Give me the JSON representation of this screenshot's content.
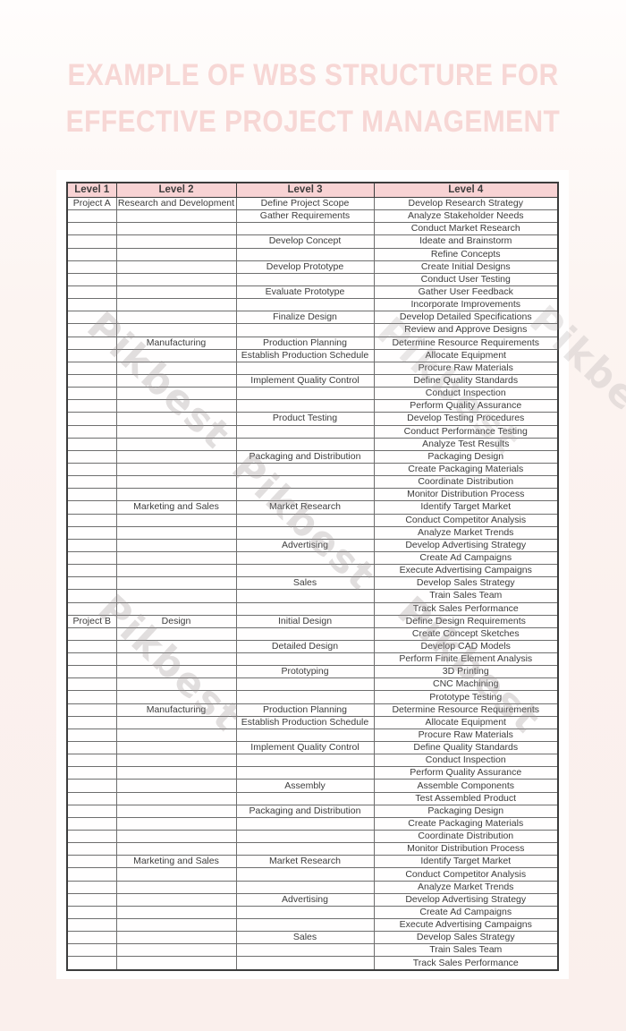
{
  "title": {
    "line1": "EXAMPLE OF WBS STRUCTURE FOR",
    "line2": "EFFECTIVE PROJECT MANAGEMENT"
  },
  "watermark": {
    "text": "Pikbest"
  },
  "colors": {
    "title_text": "#f7d7d5",
    "header_bg": "#f8d3d4",
    "page_bg_top": "#fffdfc",
    "page_bg_bottom": "#faefec",
    "card_bg": "#fffefe",
    "cell_text": "#3d3d3d",
    "border_dark": "#3c3c3c",
    "border_light": "#6e6e6e",
    "watermark_gray": "#9a9494"
  },
  "table": {
    "headers": [
      "Level 1",
      "Level 2",
      "Level 3",
      "Level 4"
    ],
    "rows": [
      [
        "Project A",
        "Research and Development",
        "Define Project Scope",
        "Develop Research Strategy"
      ],
      [
        "",
        "",
        "Gather Requirements",
        "Analyze Stakeholder Needs"
      ],
      [
        "",
        "",
        "",
        "Conduct Market Research"
      ],
      [
        "",
        "",
        "Develop Concept",
        "Ideate and Brainstorm"
      ],
      [
        "",
        "",
        "",
        "Refine Concepts"
      ],
      [
        "",
        "",
        "Develop Prototype",
        "Create Initial Designs"
      ],
      [
        "",
        "",
        "",
        "Conduct User Testing"
      ],
      [
        "",
        "",
        "Evaluate Prototype",
        "Gather User Feedback"
      ],
      [
        "",
        "",
        "",
        "Incorporate Improvements"
      ],
      [
        "",
        "",
        "Finalize Design",
        "Develop Detailed Specifications"
      ],
      [
        "",
        "",
        "",
        "Review and Approve Designs"
      ],
      [
        "",
        "Manufacturing",
        "Production Planning",
        "Determine Resource Requirements"
      ],
      [
        "",
        "",
        "Establish Production Schedule",
        "Allocate Equipment"
      ],
      [
        "",
        "",
        "",
        "Procure Raw Materials"
      ],
      [
        "",
        "",
        "Implement Quality Control",
        "Define Quality Standards"
      ],
      [
        "",
        "",
        "",
        "Conduct Inspection"
      ],
      [
        "",
        "",
        "",
        "Perform Quality Assurance"
      ],
      [
        "",
        "",
        "Product Testing",
        "Develop Testing Procedures"
      ],
      [
        "",
        "",
        "",
        "Conduct Performance Testing"
      ],
      [
        "",
        "",
        "",
        "Analyze Test Results"
      ],
      [
        "",
        "",
        "Packaging and Distribution",
        "Packaging Design"
      ],
      [
        "",
        "",
        "",
        "Create Packaging Materials"
      ],
      [
        "",
        "",
        "",
        "Coordinate Distribution"
      ],
      [
        "",
        "",
        "",
        "Monitor Distribution Process"
      ],
      [
        "",
        "Marketing and Sales",
        "Market Research",
        "Identify Target Market"
      ],
      [
        "",
        "",
        "",
        "Conduct Competitor Analysis"
      ],
      [
        "",
        "",
        "",
        "Analyze Market Trends"
      ],
      [
        "",
        "",
        "Advertising",
        "Develop Advertising Strategy"
      ],
      [
        "",
        "",
        "",
        "Create Ad Campaigns"
      ],
      [
        "",
        "",
        "",
        "Execute Advertising Campaigns"
      ],
      [
        "",
        "",
        "Sales",
        "Develop Sales Strategy"
      ],
      [
        "",
        "",
        "",
        "Train Sales Team"
      ],
      [
        "",
        "",
        "",
        "Track Sales Performance"
      ],
      [
        "Project B",
        "Design",
        "Initial Design",
        "Define Design Requirements"
      ],
      [
        "",
        "",
        "",
        "Create Concept Sketches"
      ],
      [
        "",
        "",
        "Detailed Design",
        "Develop CAD Models"
      ],
      [
        "",
        "",
        "",
        "Perform Finite Element Analysis"
      ],
      [
        "",
        "",
        "Prototyping",
        "3D Printing"
      ],
      [
        "",
        "",
        "",
        "CNC Machining"
      ],
      [
        "",
        "",
        "",
        "Prototype Testing"
      ],
      [
        "",
        "Manufacturing",
        "Production Planning",
        "Determine Resource Requirements"
      ],
      [
        "",
        "",
        "Establish Production Schedule",
        "Allocate Equipment"
      ],
      [
        "",
        "",
        "",
        "Procure Raw Materials"
      ],
      [
        "",
        "",
        "Implement Quality Control",
        "Define Quality Standards"
      ],
      [
        "",
        "",
        "",
        "Conduct Inspection"
      ],
      [
        "",
        "",
        "",
        "Perform Quality Assurance"
      ],
      [
        "",
        "",
        "Assembly",
        "Assemble Components"
      ],
      [
        "",
        "",
        "",
        "Test Assembled Product"
      ],
      [
        "",
        "",
        "Packaging and Distribution",
        "Packaging Design"
      ],
      [
        "",
        "",
        "",
        "Create Packaging Materials"
      ],
      [
        "",
        "",
        "",
        "Coordinate Distribution"
      ],
      [
        "",
        "",
        "",
        "Monitor Distribution Process"
      ],
      [
        "",
        "Marketing and Sales",
        "Market Research",
        "Identify Target Market"
      ],
      [
        "",
        "",
        "",
        "Conduct Competitor Analysis"
      ],
      [
        "",
        "",
        "",
        "Analyze Market Trends"
      ],
      [
        "",
        "",
        "Advertising",
        "Develop Advertising Strategy"
      ],
      [
        "",
        "",
        "",
        "Create Ad Campaigns"
      ],
      [
        "",
        "",
        "",
        "Execute Advertising Campaigns"
      ],
      [
        "",
        "",
        "Sales",
        "Develop Sales Strategy"
      ],
      [
        "",
        "",
        "",
        "Train Sales Team"
      ],
      [
        "",
        "",
        "",
        "Track Sales Performance"
      ]
    ]
  }
}
